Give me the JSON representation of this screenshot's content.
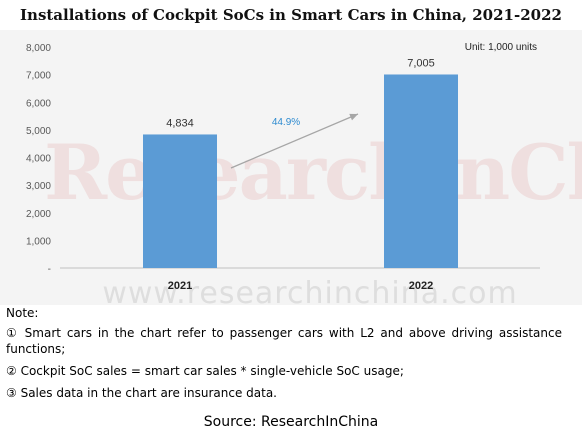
{
  "chart_data": {
    "type": "bar",
    "title": "Installations of Cockpit SoCs in Smart Cars in China, 2021-2022",
    "unit_label": "Unit: 1,000 units",
    "categories": [
      "2021",
      "2022"
    ],
    "values": [
      4834,
      7005
    ],
    "value_labels": [
      "4,834",
      "7,005"
    ],
    "growth_label": "44.9%",
    "ylim": [
      0,
      8000
    ],
    "yticks": [
      "-",
      "1,000",
      "2,000",
      "3,000",
      "4,000",
      "5,000",
      "6,000",
      "7,000",
      "8,000"
    ],
    "grid": false,
    "legend": "none",
    "colors": {
      "bar": "#5b9bd5",
      "arrow": "#a6a6a6",
      "growth": "#2e8bd0",
      "axis": "#bfbfbf",
      "tick_text": "#595959"
    }
  },
  "watermark": {
    "brand": "ResearchInChina",
    "url": "www.researchinchina.com"
  },
  "notes": {
    "heading": "Note:",
    "items": [
      "① Smart cars in the chart refer to passenger cars with L2 and above driving assistance functions;",
      "② Cockpit SoC sales = smart car sales * single-vehicle SoC usage;",
      "③ Sales data in the chart are insurance data."
    ]
  },
  "source": "Source: ResearchInChina"
}
